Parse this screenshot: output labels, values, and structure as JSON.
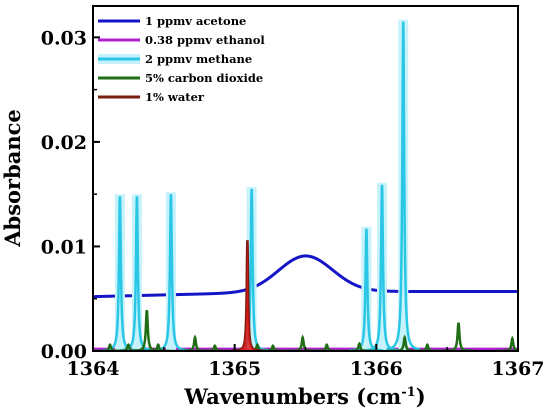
{
  "chart_data": {
    "type": "line",
    "xlabel_main": "Wavenumbers (cm",
    "xlabel_sup": "-1",
    "xlabel_close": ")",
    "ylabel": "Absorbance",
    "xlim": [
      1364,
      1367
    ],
    "ylim": [
      0,
      0.033
    ],
    "x_ticks": [
      1364,
      1365,
      1366,
      1367
    ],
    "x_tick_labels": [
      "1364",
      "1365",
      "1366",
      "1367"
    ],
    "y_ticks": [
      0.0,
      0.01,
      0.02,
      0.03
    ],
    "y_tick_labels": [
      "0.00",
      "0.01",
      "0.02",
      "0.03"
    ],
    "grid": false,
    "legend_position": "top-left",
    "series": [
      {
        "name": "1 ppmv acetone",
        "color": "#1515c8",
        "style": "broad",
        "baseline": 0.0052,
        "baseline_slope": 0.00033,
        "peak": {
          "center": 1365.5,
          "height": 0.0034,
          "width": 0.27
        },
        "right_level": 0.0053
      },
      {
        "name": "0.38 ppmv ethanol",
        "color": "#b020d0",
        "style": "flat",
        "value": 0.0002
      },
      {
        "name": "2 ppmv methane",
        "color": "#29c6e6",
        "halo": "#c6f2fb",
        "style": "peaks",
        "peak_width": 0.008,
        "peaks": [
          {
            "x": 1364.19,
            "y": 0.0148
          },
          {
            "x": 1364.31,
            "y": 0.0148
          },
          {
            "x": 1364.55,
            "y": 0.015
          },
          {
            "x": 1365.12,
            "y": 0.0155
          },
          {
            "x": 1365.93,
            "y": 0.0117
          },
          {
            "x": 1366.04,
            "y": 0.0159
          },
          {
            "x": 1366.19,
            "y": 0.0315
          }
        ]
      },
      {
        "name": "5% carbon dioxide",
        "color": "#1f6e14",
        "style": "peaks",
        "peak_width": 0.008,
        "peaks": [
          {
            "x": 1364.12,
            "y": 0.0006
          },
          {
            "x": 1364.25,
            "y": 0.0006
          },
          {
            "x": 1364.38,
            "y": 0.0039
          },
          {
            "x": 1364.46,
            "y": 0.0006
          },
          {
            "x": 1364.72,
            "y": 0.0013
          },
          {
            "x": 1364.86,
            "y": 0.0005
          },
          {
            "x": 1365.16,
            "y": 0.0006
          },
          {
            "x": 1365.27,
            "y": 0.0005
          },
          {
            "x": 1365.48,
            "y": 0.0013
          },
          {
            "x": 1365.65,
            "y": 0.0006
          },
          {
            "x": 1365.88,
            "y": 0.0007
          },
          {
            "x": 1366.2,
            "y": 0.0013
          },
          {
            "x": 1366.36,
            "y": 0.0006
          },
          {
            "x": 1366.58,
            "y": 0.0027
          },
          {
            "x": 1366.96,
            "y": 0.0012
          }
        ]
      },
      {
        "name": "1%  water",
        "color": "#7a1d10",
        "accent": "#e01818",
        "style": "peaks",
        "peak_width": 0.006,
        "peaks": [
          {
            "x": 1365.09,
            "y": 0.0106
          }
        ]
      }
    ]
  }
}
